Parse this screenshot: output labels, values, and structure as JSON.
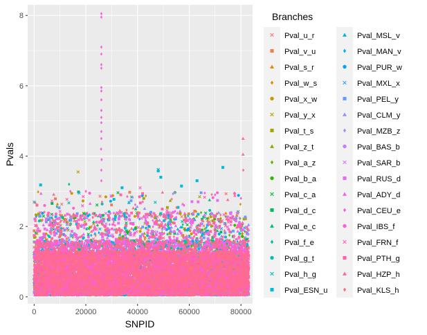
{
  "chart_data": {
    "type": "scatter",
    "xlabel": "SNPID",
    "ylabel": "Pvals",
    "xlim": [
      -2500,
      84500
    ],
    "ylim": [
      -0.2,
      8.3
    ],
    "xticks": [
      0,
      20000,
      40000,
      60000,
      80000
    ],
    "xtick_labels": [
      "0",
      "20000",
      "40000",
      "60000",
      "80000"
    ],
    "yticks": [
      0,
      2,
      4,
      6,
      8
    ],
    "ytick_labels": [
      "0",
      "2",
      "4",
      "6",
      "8"
    ],
    "grid": true,
    "legend": {
      "title": "Branches",
      "placement": "right",
      "columns": 2,
      "entries": [
        {
          "label": "Pval_u_r",
          "color": "#F8766D",
          "shape": "x"
        },
        {
          "label": "Pval_v_u",
          "color": "#F07E4F",
          "shape": "square"
        },
        {
          "label": "Pval_s_r",
          "color": "#E58700",
          "shape": "triangle"
        },
        {
          "label": "Pval_w_s",
          "color": "#D89000",
          "shape": "diamond"
        },
        {
          "label": "Pval_x_w",
          "color": "#C99800",
          "shape": "circle"
        },
        {
          "label": "Pval_y_x",
          "color": "#B79F00",
          "shape": "x"
        },
        {
          "label": "Pval_t_s",
          "color": "#A3A500",
          "shape": "square"
        },
        {
          "label": "Pval_z_t",
          "color": "#8CAB00",
          "shape": "triangle"
        },
        {
          "label": "Pval_a_z",
          "color": "#6BB100",
          "shape": "diamond"
        },
        {
          "label": "Pval_b_a",
          "color": "#39B600",
          "shape": "circle"
        },
        {
          "label": "Pval_c_a",
          "color": "#00BA38",
          "shape": "x"
        },
        {
          "label": "Pval_d_c",
          "color": "#00BD5C",
          "shape": "square"
        },
        {
          "label": "Pval_e_c",
          "color": "#00BF7D",
          "shape": "triangle"
        },
        {
          "label": "Pval_f_e",
          "color": "#00C09A",
          "shape": "diamond"
        },
        {
          "label": "Pval_g_t",
          "color": "#00C0B4",
          "shape": "circle"
        },
        {
          "label": "Pval_h_g",
          "color": "#00BFC4",
          "shape": "x"
        },
        {
          "label": "Pval_ESN_u",
          "color": "#00BBDC",
          "shape": "square"
        },
        {
          "label": "Pval_MSL_v",
          "color": "#00B5EC",
          "shape": "triangle"
        },
        {
          "label": "Pval_MAN_v",
          "color": "#00AEFA",
          "shape": "diamond"
        },
        {
          "label": "Pval_PUR_w",
          "color": "#00A5FF",
          "shape": "circle"
        },
        {
          "label": "Pval_MXL_x",
          "color": "#35A2FF",
          "shape": "x"
        },
        {
          "label": "Pval_PEL_y",
          "color": "#6C9AFF",
          "shape": "square"
        },
        {
          "label": "Pval_CLM_y",
          "color": "#8F91FF",
          "shape": "triangle"
        },
        {
          "label": "Pval_MZB_z",
          "color": "#AC88FF",
          "shape": "diamond"
        },
        {
          "label": "Pval_BAS_b",
          "color": "#C57EFF",
          "shape": "circle"
        },
        {
          "label": "Pval_SAR_b",
          "color": "#D974FF",
          "shape": "x"
        },
        {
          "label": "Pval_RUS_d",
          "color": "#E76BF3",
          "shape": "square"
        },
        {
          "label": "Pval_ADY_d",
          "color": "#F166E8",
          "shape": "triangle"
        },
        {
          "label": "Pval_CEU_e",
          "color": "#F962DD",
          "shape": "diamond"
        },
        {
          "label": "Pval_IBS_f",
          "color": "#FD61D1",
          "shape": "circle"
        },
        {
          "label": "Pval_FRN_f",
          "color": "#FF62BC",
          "shape": "x"
        },
        {
          "label": "Pval_PTH_g",
          "color": "#FF64A8",
          "shape": "square"
        },
        {
          "label": "Pval_HZP_h",
          "color": "#FF6892",
          "shape": "triangle"
        },
        {
          "label": "Pval_KLS_h",
          "color": "#FC717F",
          "shape": "diamond"
        }
      ]
    },
    "series_range": {
      "x_min": 0,
      "x_max": 83000,
      "n_snps": 83000
    },
    "notable_points": [
      {
        "series": "Pval_CEU_e",
        "x": 26000,
        "y": 8.05
      },
      {
        "series": "Pval_CEU_e",
        "x": 26000,
        "y": 7.95
      },
      {
        "series": "Pval_CEU_e",
        "x": 26000,
        "y": 7.1
      },
      {
        "series": "Pval_CEU_e",
        "x": 26000,
        "y": 6.9
      },
      {
        "series": "Pval_CEU_e",
        "x": 26000,
        "y": 6.6
      },
      {
        "series": "Pval_CEU_e",
        "x": 26000,
        "y": 6.5
      },
      {
        "series": "Pval_CEU_e",
        "x": 26000,
        "y": 5.95
      },
      {
        "series": "Pval_CEU_e",
        "x": 26000,
        "y": 5.85
      },
      {
        "series": "Pval_CEU_e",
        "x": 26000,
        "y": 5.6
      },
      {
        "series": "Pval_CEU_e",
        "x": 26000,
        "y": 5.3
      },
      {
        "series": "Pval_CEU_e",
        "x": 26000,
        "y": 5.1
      },
      {
        "series": "Pval_CEU_e",
        "x": 26000,
        "y": 4.95
      },
      {
        "series": "Pval_CEU_e",
        "x": 26000,
        "y": 4.7
      },
      {
        "series": "Pval_CEU_e",
        "x": 26000,
        "y": 4.5
      },
      {
        "series": "Pval_CEU_e",
        "x": 25900,
        "y": 4.2
      },
      {
        "series": "Pval_CEU_e",
        "x": 26100,
        "y": 3.9
      },
      {
        "series": "Pval_CEU_e",
        "x": 26000,
        "y": 3.6
      },
      {
        "series": "Pval_CEU_e",
        "x": 26000,
        "y": 3.3
      },
      {
        "series": "Pval_HZP_h",
        "x": 80800,
        "y": 4.5
      },
      {
        "series": "Pval_HZP_h",
        "x": 80800,
        "y": 4.05
      },
      {
        "series": "Pval_KLS_h",
        "x": 80900,
        "y": 3.6
      },
      {
        "series": "Pval_y_x",
        "x": 17000,
        "y": 3.55
      },
      {
        "series": "Pval_h_g",
        "x": 48000,
        "y": 3.62
      },
      {
        "series": "Pval_ESN_u",
        "x": 48000,
        "y": 3.58
      },
      {
        "series": "Pval_ESN_u",
        "x": 73000,
        "y": 3.68
      },
      {
        "series": "Pval_ESN_u",
        "x": 2500,
        "y": 3.18
      },
      {
        "series": "Pval_f_e",
        "x": 13500,
        "y": 3.2
      },
      {
        "series": "Pval_FRN_f",
        "x": 41000,
        "y": 3.1
      },
      {
        "series": "Pval_ESN_u",
        "x": 34000,
        "y": 3.1
      },
      {
        "series": "Pval_ESN_u",
        "x": 63000,
        "y": 3.3
      },
      {
        "series": "Pval_ESN_u",
        "x": 57000,
        "y": 3.15
      },
      {
        "series": "Pval_ESN_u",
        "x": 49000,
        "y": 3.4
      },
      {
        "series": "Pval_CEU_e",
        "x": 14000,
        "y": 3.0
      },
      {
        "series": "Pval_CEU_e",
        "x": 20000,
        "y": 3.0
      },
      {
        "series": "Pval_CEU_e",
        "x": 36000,
        "y": 2.85
      },
      {
        "series": "Pval_CEU_e",
        "x": 42000,
        "y": 2.7
      },
      {
        "series": "Pval_CEU_e",
        "x": 58000,
        "y": 2.6
      },
      {
        "series": "Pval_CEU_e",
        "x": 66000,
        "y": 2.95
      },
      {
        "series": "Pval_CEU_e",
        "x": 70000,
        "y": 2.9
      },
      {
        "series": "Pval_CEU_e",
        "x": 80000,
        "y": 2.8
      }
    ]
  }
}
